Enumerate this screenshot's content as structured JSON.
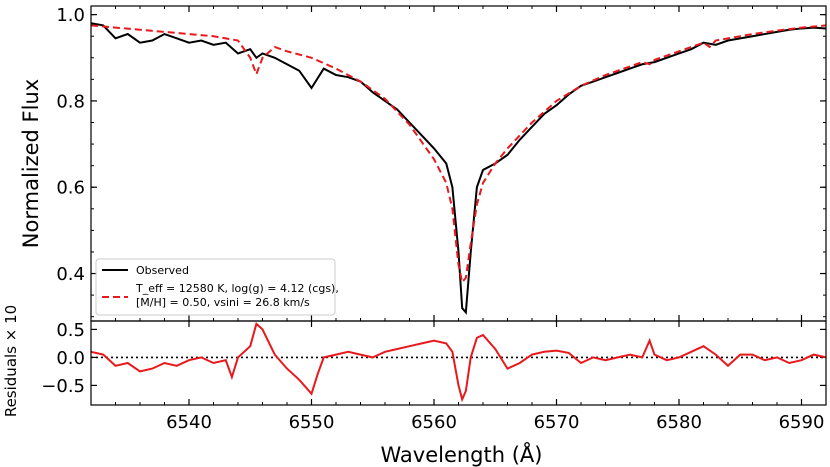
{
  "chart_data": [
    {
      "type": "line",
      "panel": "main",
      "ylabel": "Normalized Flux",
      "xlim": [
        6532,
        6592
      ],
      "ylim": [
        0.29,
        1.02
      ],
      "xticks": [
        6540,
        6550,
        6560,
        6570,
        6580,
        6590
      ],
      "yticks": [
        0.4,
        0.6,
        0.8,
        1.0
      ],
      "ytick_labels": [
        "0.4",
        "0.6",
        "0.8",
        "1.0"
      ],
      "legend_position": "lower-left",
      "series": [
        {
          "name": "Observed",
          "color": "#000000",
          "style": "solid",
          "x": [
            6532,
            6533,
            6534,
            6535,
            6536,
            6537,
            6538,
            6539,
            6540,
            6541,
            6542,
            6543,
            6544,
            6545,
            6545.5,
            6546,
            6547,
            6548,
            6549,
            6550,
            6551,
            6552,
            6553,
            6554,
            6555,
            6556,
            6557,
            6558,
            6559,
            6560,
            6561,
            6561.5,
            6562,
            6562.3,
            6562.6,
            6563,
            6563.5,
            6564,
            6565,
            6566,
            6567,
            6568,
            6569,
            6570,
            6571,
            6572,
            6573,
            6574,
            6575,
            6576,
            6577,
            6578,
            6579,
            6580,
            6581,
            6582,
            6583,
            6584,
            6585,
            6586,
            6587,
            6588,
            6589,
            6590,
            6591,
            6592
          ],
          "values": [
            0.98,
            0.975,
            0.945,
            0.955,
            0.935,
            0.94,
            0.955,
            0.945,
            0.935,
            0.94,
            0.93,
            0.935,
            0.91,
            0.92,
            0.9,
            0.91,
            0.9,
            0.885,
            0.87,
            0.83,
            0.875,
            0.86,
            0.855,
            0.845,
            0.82,
            0.8,
            0.78,
            0.75,
            0.72,
            0.69,
            0.655,
            0.6,
            0.45,
            0.32,
            0.31,
            0.45,
            0.6,
            0.64,
            0.655,
            0.675,
            0.71,
            0.74,
            0.77,
            0.79,
            0.815,
            0.835,
            0.845,
            0.855,
            0.865,
            0.875,
            0.885,
            0.89,
            0.9,
            0.91,
            0.92,
            0.935,
            0.93,
            0.94,
            0.945,
            0.95,
            0.955,
            0.96,
            0.965,
            0.968,
            0.97,
            0.968
          ]
        },
        {
          "name": "$T_{\\rm eff}=12580$ K, $\\log(g)=4.12$ (cgs), [M/H]$=0.50$, $v\\sin i=26.8$ km/s",
          "legend_line1": "T_eff = 12580 K, log(g) = 4.12 (cgs),",
          "legend_line2": "[M/H] = 0.50, vsini = 26.8 km/s",
          "color": "#e8191c",
          "style": "dashed",
          "x": [
            6532,
            6534,
            6536,
            6538,
            6540,
            6542,
            6543,
            6544,
            6545,
            6545.5,
            6546,
            6547,
            6548,
            6550,
            6552,
            6554,
            6556,
            6558,
            6559,
            6560,
            6561,
            6561.5,
            6562,
            6562.3,
            6562.6,
            6563,
            6563.5,
            6564,
            6565,
            6566,
            6567,
            6568,
            6570,
            6572,
            6574,
            6576,
            6577,
            6577.6,
            6578,
            6580,
            6582,
            6582.5,
            6583,
            6584,
            6586,
            6588,
            6590,
            6592
          ],
          "values": [
            0.975,
            0.97,
            0.965,
            0.96,
            0.955,
            0.95,
            0.945,
            0.94,
            0.9,
            0.862,
            0.9,
            0.925,
            0.915,
            0.9,
            0.875,
            0.845,
            0.805,
            0.745,
            0.705,
            0.665,
            0.61,
            0.55,
            0.42,
            0.38,
            0.39,
            0.47,
            0.56,
            0.61,
            0.655,
            0.69,
            0.72,
            0.75,
            0.8,
            0.835,
            0.86,
            0.88,
            0.89,
            0.885,
            0.895,
            0.915,
            0.935,
            0.925,
            0.94,
            0.945,
            0.955,
            0.963,
            0.97,
            0.975
          ]
        }
      ]
    },
    {
      "type": "line",
      "panel": "residuals",
      "xlabel": "Wavelength (Å)",
      "ylabel": "Residuals × 10",
      "xlim": [
        6532,
        6592
      ],
      "ylim": [
        -0.85,
        0.65
      ],
      "xticks": [
        6540,
        6550,
        6560,
        6570,
        6580,
        6590
      ],
      "yticks": [
        -0.5,
        0.0,
        0.5
      ],
      "ytick_labels": [
        "−0.5",
        "0.0",
        "0.5"
      ],
      "zero_line": "dotted black",
      "series": [
        {
          "name": "Residuals",
          "color": "#e8191c",
          "x": [
            6532,
            6533,
            6534,
            6535,
            6536,
            6537,
            6538,
            6539,
            6540,
            6541,
            6542,
            6543,
            6543.5,
            6544,
            6545,
            6545.5,
            6546,
            6547,
            6548,
            6549,
            6550,
            6550.5,
            6551,
            6552,
            6553,
            6554,
            6555,
            6556,
            6557,
            6558,
            6559,
            6560,
            6561,
            6561.5,
            6562,
            6562.3,
            6562.6,
            6563,
            6563.5,
            6564,
            6565,
            6566,
            6567,
            6568,
            6569,
            6570,
            6571,
            6572,
            6573,
            6574,
            6575,
            6576,
            6577,
            6577.6,
            6578,
            6579,
            6580,
            6581,
            6582,
            6583,
            6584,
            6585,
            6586,
            6587,
            6588,
            6589,
            6590,
            6591,
            6592
          ],
          "values": [
            0.1,
            0.05,
            -0.15,
            -0.1,
            -0.25,
            -0.2,
            -0.1,
            -0.15,
            -0.05,
            0.0,
            -0.1,
            -0.05,
            -0.35,
            0.0,
            0.2,
            0.6,
            0.5,
            0.05,
            -0.2,
            -0.4,
            -0.65,
            -0.3,
            0.0,
            0.05,
            0.1,
            0.05,
            0.0,
            0.1,
            0.15,
            0.2,
            0.25,
            0.3,
            0.25,
            0.1,
            -0.5,
            -0.75,
            -0.6,
            0.0,
            0.35,
            0.4,
            0.15,
            -0.2,
            -0.1,
            0.05,
            0.1,
            0.12,
            0.08,
            -0.1,
            0.0,
            -0.05,
            0.0,
            0.05,
            0.0,
            0.3,
            0.05,
            -0.05,
            0.0,
            0.1,
            0.2,
            0.05,
            -0.15,
            0.05,
            0.05,
            -0.05,
            0.0,
            -0.1,
            -0.05,
            0.05,
            0.0
          ]
        }
      ]
    }
  ]
}
